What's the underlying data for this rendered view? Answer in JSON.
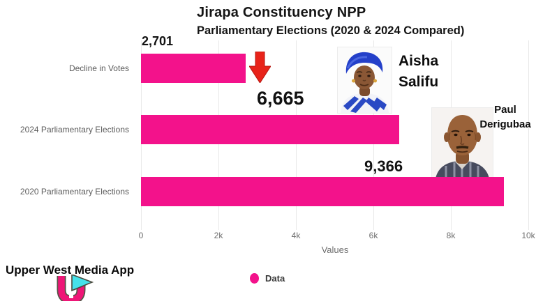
{
  "title": {
    "line1": "Jirapa Constituency NPP",
    "line2": "Parliamentary Elections (2020 & 2024 Compared)"
  },
  "chart_data": {
    "type": "bar",
    "orientation": "horizontal",
    "categories": [
      "Decline in Votes",
      "2024 Parliamentary Elections",
      "2020 Parliamentary Elections"
    ],
    "values": [
      2701,
      6665,
      9366
    ],
    "value_labels": [
      "2,701",
      "6,665",
      "9,366"
    ],
    "series_name": "Data",
    "xlabel": "Values",
    "x_ticks": [
      "0",
      "2k",
      "4k",
      "6k",
      "8k",
      "10k"
    ],
    "xlim": [
      0,
      10000
    ],
    "grid": true,
    "legend_position": "bottom-center",
    "bar_color": "#F3128B"
  },
  "annotations": {
    "arrow_icon": "red-down-arrow",
    "aisha": {
      "first": "Aisha",
      "last": "Salifu",
      "photo": "woman-with-blue-headwrap"
    },
    "paul": {
      "first": "Paul",
      "last": "Derigubaa",
      "photo": "bald-man-striped-shirt"
    }
  },
  "legend": {
    "label": "Data"
  },
  "footer": {
    "brand": "Upper West Media App"
  },
  "colors": {
    "bar": "#F3128B",
    "arrow": "#E8231A",
    "grid": "#E8E8E8",
    "axis_text": "#6E6E6E",
    "title_text": "#141414"
  }
}
